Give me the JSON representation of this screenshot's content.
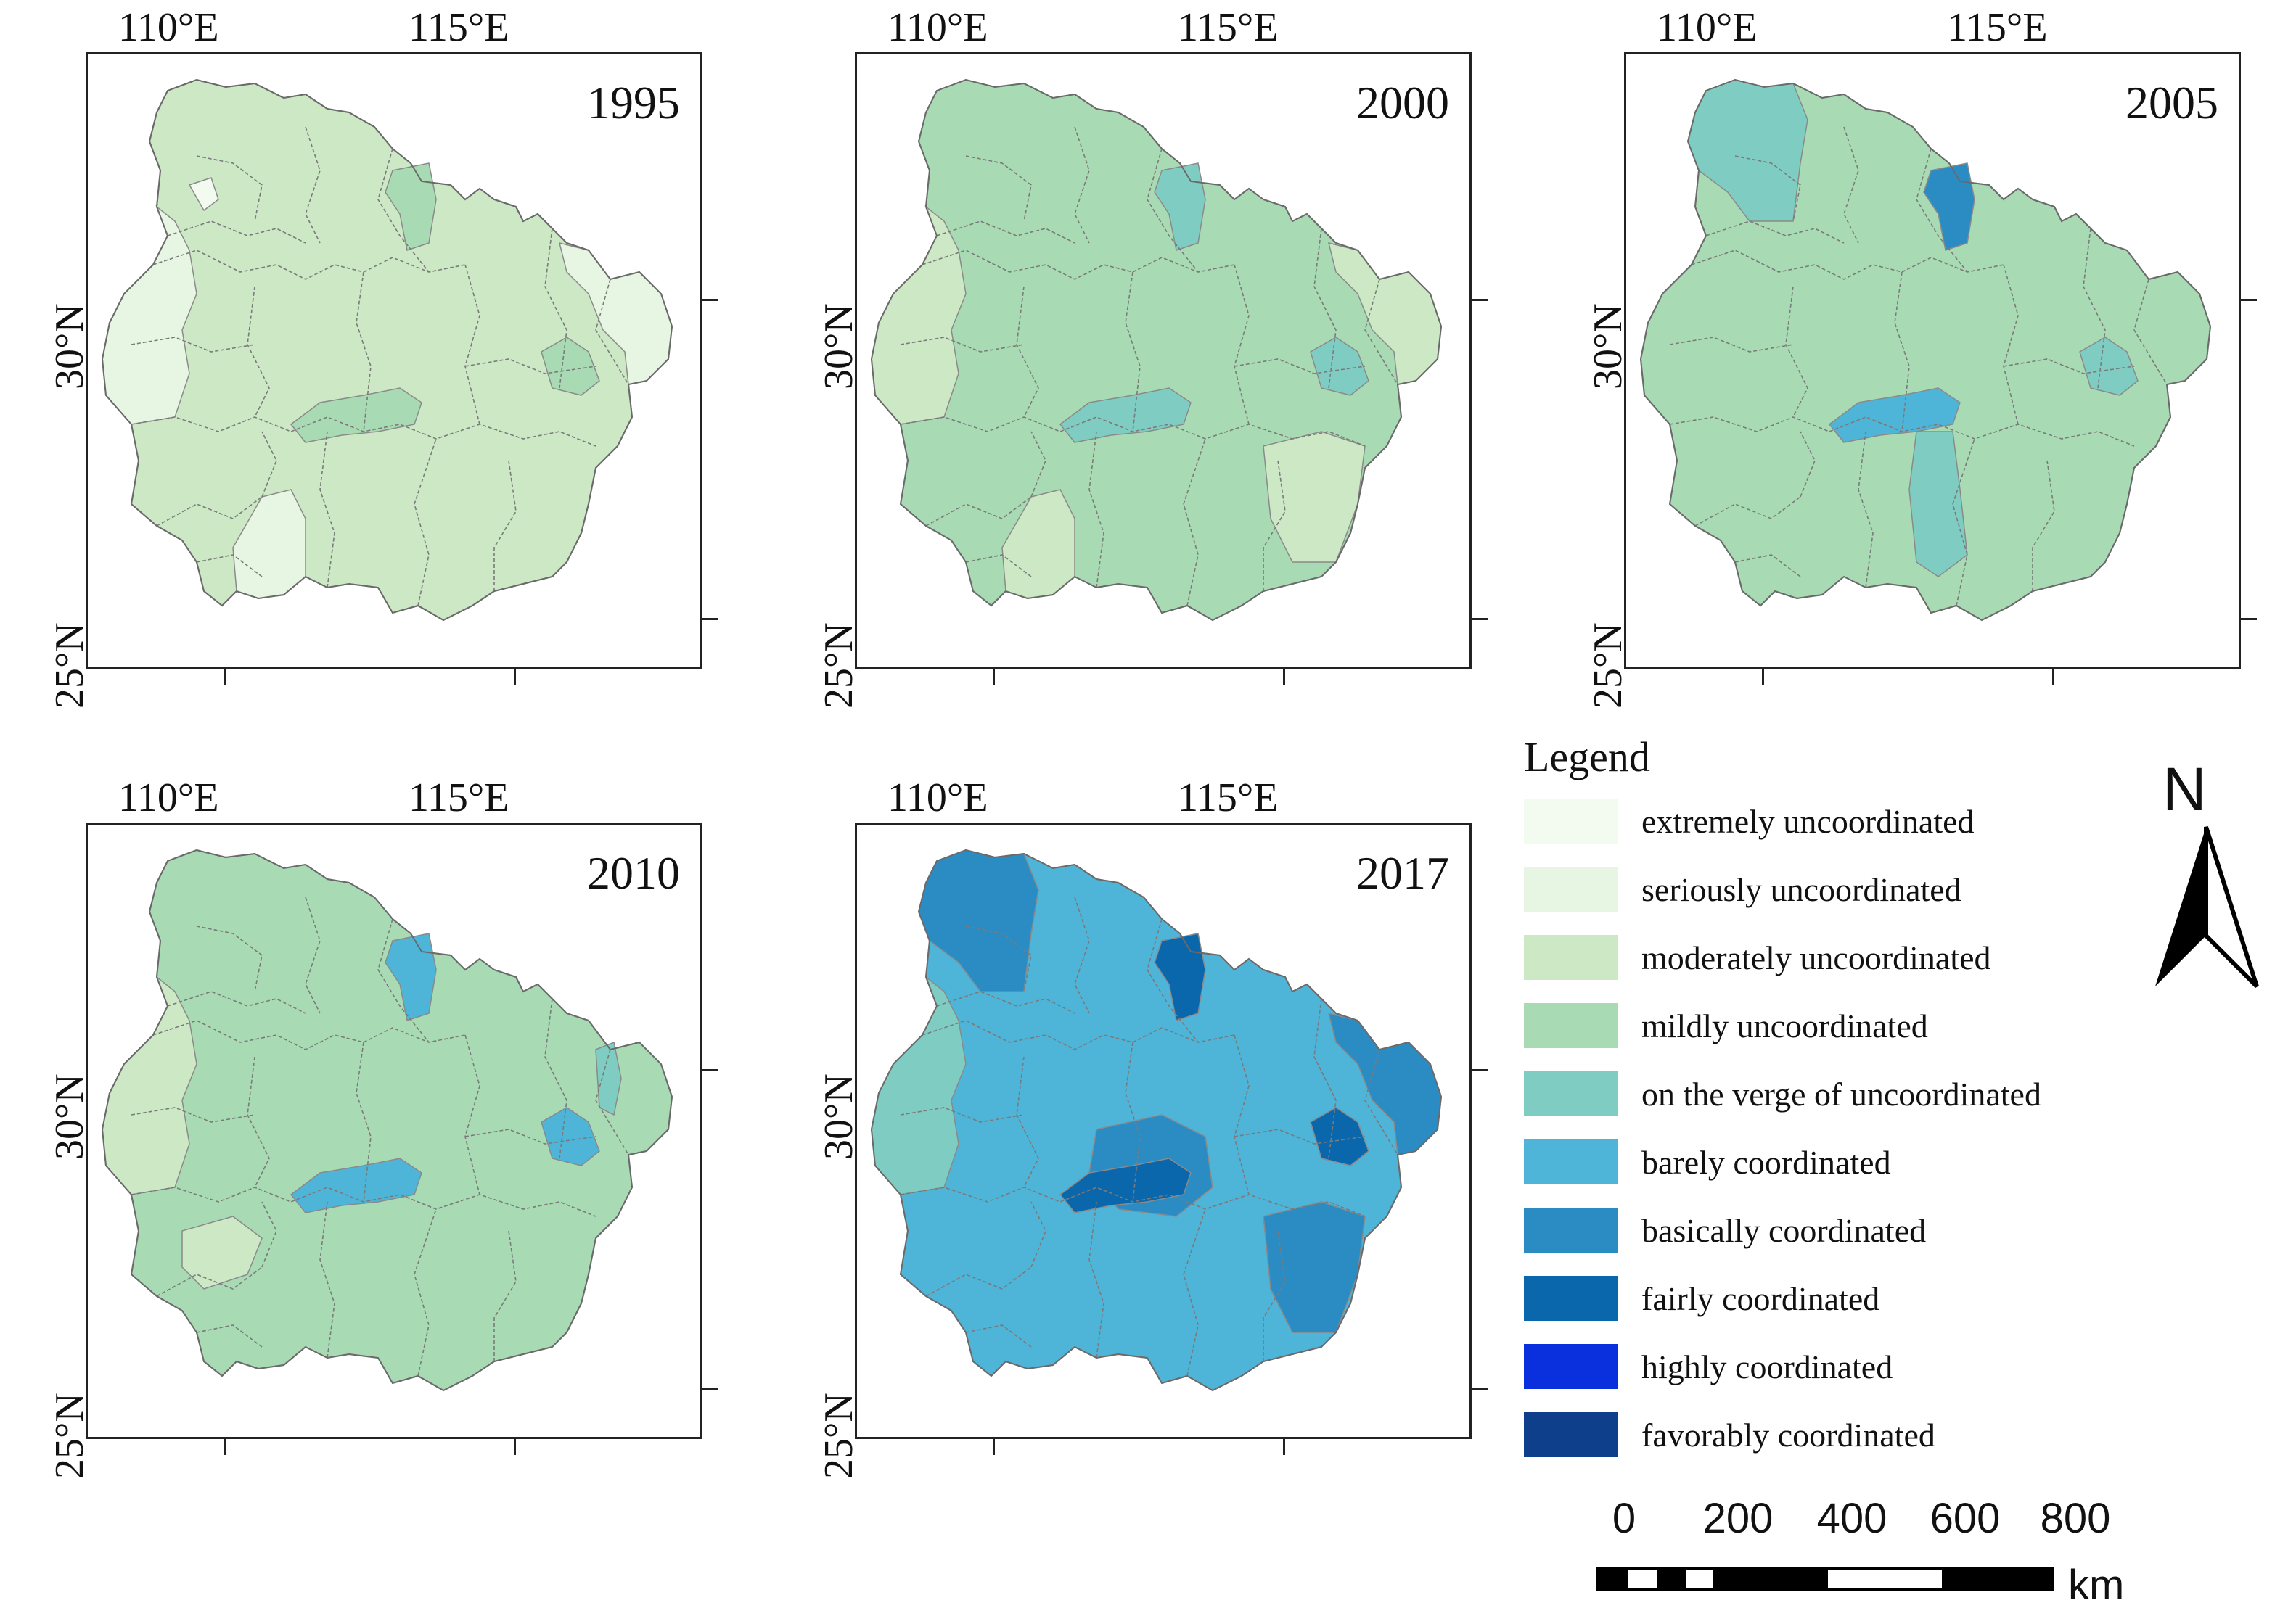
{
  "axis_labels": {
    "lon": [
      "110°E",
      "115°E"
    ],
    "lat": [
      "30°N",
      "25°N"
    ]
  },
  "panels": [
    {
      "year": "1995",
      "base": "moderately",
      "accents": [
        {
          "region": "west",
          "level": "seriously"
        },
        {
          "region": "northeast-small",
          "level": "extremely"
        },
        {
          "region": "north-small",
          "level": "mildly"
        },
        {
          "region": "center-lake",
          "level": "mildly"
        },
        {
          "region": "east-lake",
          "level": "mildly"
        },
        {
          "region": "east",
          "level": "seriously"
        },
        {
          "region": "south",
          "level": "seriously"
        }
      ]
    },
    {
      "year": "2000",
      "base": "mildly",
      "accents": [
        {
          "region": "west",
          "level": "moderately"
        },
        {
          "region": "south",
          "level": "moderately"
        },
        {
          "region": "southeast",
          "level": "moderately"
        },
        {
          "region": "north-small",
          "level": "verge"
        },
        {
          "region": "center-lake",
          "level": "verge"
        },
        {
          "region": "east-lake",
          "level": "verge"
        },
        {
          "region": "east",
          "level": "moderately"
        }
      ]
    },
    {
      "year": "2005",
      "base": "mildly",
      "accents": [
        {
          "region": "northwest",
          "level": "verge"
        },
        {
          "region": "north-small",
          "level": "basically"
        },
        {
          "region": "center-lake",
          "level": "barely"
        },
        {
          "region": "south-strip",
          "level": "verge"
        },
        {
          "region": "east-lake",
          "level": "verge"
        }
      ]
    },
    {
      "year": "2010",
      "base": "mildly",
      "accents": [
        {
          "region": "west",
          "level": "moderately"
        },
        {
          "region": "southwest",
          "level": "moderately"
        },
        {
          "region": "north-small",
          "level": "barely"
        },
        {
          "region": "center-lake",
          "level": "barely"
        },
        {
          "region": "east-lake",
          "level": "barely"
        },
        {
          "region": "east-small",
          "level": "verge"
        }
      ]
    },
    {
      "year": "2017",
      "base": "barely",
      "accents": [
        {
          "region": "west",
          "level": "verge"
        },
        {
          "region": "northwest",
          "level": "basically"
        },
        {
          "region": "north-small",
          "level": "fairly"
        },
        {
          "region": "center",
          "level": "basically"
        },
        {
          "region": "center-lake",
          "level": "fairly"
        },
        {
          "region": "east",
          "level": "basically"
        },
        {
          "region": "east-lake",
          "level": "fairly"
        },
        {
          "region": "southeast",
          "level": "basically"
        }
      ]
    }
  ],
  "legend": {
    "title": "Legend",
    "items": [
      {
        "key": "extremely",
        "label": "extremely uncoordinated",
        "color": "#f3faf0"
      },
      {
        "key": "seriously",
        "label": "seriously uncoordinated",
        "color": "#e6f6e2"
      },
      {
        "key": "moderately",
        "label": "moderately uncoordinated",
        "color": "#cce8c4"
      },
      {
        "key": "mildly",
        "label": "mildly uncoordinated",
        "color": "#a8dbb4"
      },
      {
        "key": "verge",
        "label": "on the verge of uncoordinated",
        "color": "#7fcdc2"
      },
      {
        "key": "barely",
        "label": "barely coordinated",
        "color": "#4eb4d8"
      },
      {
        "key": "basically",
        "label": "basically coordinated",
        "color": "#2b8cc4"
      },
      {
        "key": "fairly",
        "label": "fairly coordinated",
        "color": "#0a67ac"
      },
      {
        "key": "highly",
        "label": "highly coordinated",
        "color": "#0a2fdc"
      },
      {
        "key": "favorably",
        "label": "favorably coordinated",
        "color": "#0d3f8a"
      }
    ]
  },
  "north_arrow": {
    "letter": "N"
  },
  "scale_bar": {
    "ticks": [
      "0",
      "200",
      "400",
      "600",
      "800"
    ],
    "unit": "km"
  }
}
